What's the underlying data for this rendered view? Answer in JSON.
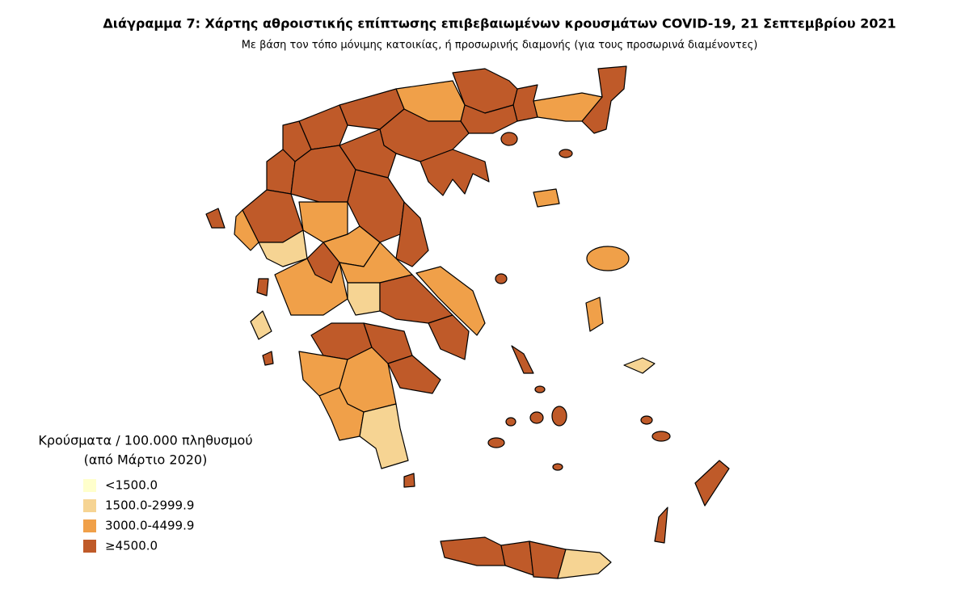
{
  "header": {
    "title": "Διάγραμμα 7: Χάρτης αθροιστικής επίπτωσης επιβεβαιωμένων κρουσμάτων COVID-19, 21 Σεπτεμβρίου 2021",
    "subtitle": "Με βάση τον τόπο μόνιμης κατοικίας, ή προσωρινής διαμονής (για τους προσωρινά διαμένοντες)"
  },
  "legend": {
    "title": [
      "Κρούσματα / 100.000 πληθυσμού",
      "(από Μάρτιο 2020)"
    ],
    "items": [
      {
        "label": "<1500.0",
        "color": "#ffffcc"
      },
      {
        "label": "1500.0-2999.9",
        "color": "#f6d493"
      },
      {
        "label": "3000.0-4499.9",
        "color": "#f0a049"
      },
      {
        "label": "≥4500.0",
        "color": "#bf5a29"
      }
    ]
  }
}
